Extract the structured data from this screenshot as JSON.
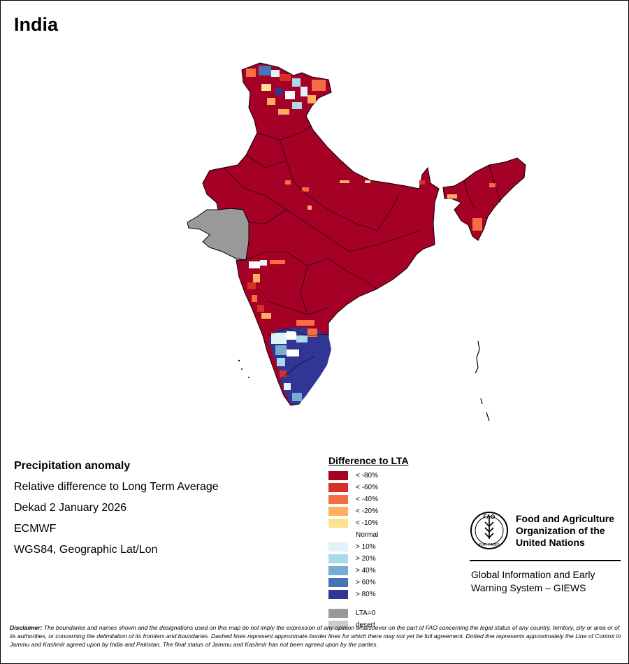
{
  "title": "India",
  "info": {
    "heading": "Precipitation anomaly",
    "line1": "Relative difference to Long Term Average",
    "line2": "Dekad 2 January 2026",
    "line3": "ECMWF",
    "line4": "WGS84, Geographic Lat/Lon"
  },
  "legend": {
    "title": "Difference to LTA",
    "dry": [
      {
        "label": "< -80%",
        "color": "#a50026"
      },
      {
        "label": "< -60%",
        "color": "#d73027"
      },
      {
        "label": "< -40%",
        "color": "#f46d43"
      },
      {
        "label": "< -20%",
        "color": "#fdae61"
      },
      {
        "label": "< -10%",
        "color": "#fee090"
      }
    ],
    "normal": {
      "label": "Normal",
      "color": "#ffffff"
    },
    "wet": [
      {
        "label": "> 10%",
        "color": "#e0f3f8"
      },
      {
        "label": "> 20%",
        "color": "#abd9e9"
      },
      {
        "label": "> 40%",
        "color": "#74add1"
      },
      {
        "label": "> 60%",
        "color": "#4575b4"
      },
      {
        "label": "> 80%",
        "color": "#313695"
      }
    ],
    "other": [
      {
        "label": "LTA=0",
        "color": "#999999"
      },
      {
        "label": "desert",
        "color": "#cccccc"
      }
    ]
  },
  "fao": {
    "name_line1": "Food and Agriculture",
    "name_line2": "Organization of the",
    "name_line3": "United Nations",
    "emblem_letters": "FAO",
    "emblem_motto": "FIAT PANIS",
    "giews_line1": "Global Information and Early",
    "giews_line2": "Warning System – GIEWS"
  },
  "disclaimer": {
    "label": "Disclaimer:",
    "text": " The boundaries and names shown and the designations used on this map do not imply the expression of any opinion whatsoever on the part of FAO concerning the legal status of any country, territory, city or area or of its authorities, or concerning the delimitation of its frontiers and boundaries. Dashed lines represent approximate border lines for which there may not yet be full agreement. Dotted line represents approximately the Line of Control in Jammu and Kashmir agreed upon by India and Pakistan. The final status of Jammu and Kashmir has not been agreed upon by the parties."
  },
  "map_colors": {
    "dry_extreme": "#a50026",
    "lta_zero": "#999999",
    "wet_extreme": "#313695",
    "border": "#000000"
  }
}
